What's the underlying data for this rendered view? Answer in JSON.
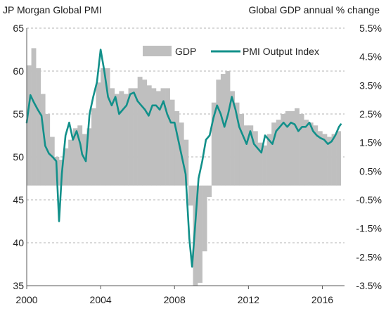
{
  "chart_data": {
    "type": "bar+line",
    "titles": {
      "left": "JP Morgan Global  PMI",
      "right": "Global  GDP annual % change"
    },
    "y_left": {
      "range": [
        35,
        65
      ],
      "ticks": [
        "35",
        "40",
        "45",
        "50",
        "55",
        "60",
        "65"
      ],
      "tick_values": [
        35,
        40,
        45,
        50,
        55,
        60,
        65
      ]
    },
    "y_right": {
      "range": [
        -3.5,
        5.5
      ],
      "ticks": [
        "-3.5%",
        "-2.5%",
        "-1.5%",
        "-0.5%",
        "0.5%",
        "1.5%",
        "2.5%",
        "3.5%",
        "4.5%",
        "5.5%"
      ],
      "tick_values": [
        -3.5,
        -2.5,
        -1.5,
        -0.5,
        0.5,
        1.5,
        2.5,
        3.5,
        4.5,
        5.5
      ]
    },
    "x_axis": {
      "range": [
        2000.0,
        2017.2
      ],
      "ticks": [
        "2000",
        "2004",
        "2008",
        "2012",
        "2016"
      ],
      "tick_values": [
        2000,
        2004,
        2008,
        2012,
        2016
      ]
    },
    "grid": true,
    "legend": {
      "position": "top-right",
      "items": [
        "GDP",
        "PMI Output Index"
      ]
    },
    "series": [
      {
        "name": "GDP",
        "kind": "bar",
        "axis": "right",
        "color": "#bfbfbf",
        "x": [
          2000.0,
          2000.25,
          2000.5,
          2000.75,
          2001.0,
          2001.25,
          2001.5,
          2001.75,
          2002.0,
          2002.25,
          2002.5,
          2002.75,
          2003.0,
          2003.25,
          2003.5,
          2003.75,
          2004.0,
          2004.25,
          2004.5,
          2004.75,
          2005.0,
          2005.25,
          2005.5,
          2005.75,
          2006.0,
          2006.25,
          2006.5,
          2006.75,
          2007.0,
          2007.25,
          2007.5,
          2007.75,
          2008.0,
          2008.25,
          2008.5,
          2008.75,
          2009.0,
          2009.25,
          2009.5,
          2009.75,
          2010.0,
          2010.25,
          2010.5,
          2010.75,
          2011.0,
          2011.25,
          2011.5,
          2011.75,
          2012.0,
          2012.25,
          2012.5,
          2012.75,
          2013.0,
          2013.25,
          2013.5,
          2013.75,
          2014.0,
          2014.25,
          2014.5,
          2014.75,
          2015.0,
          2015.25,
          2015.5,
          2015.75,
          2016.0,
          2016.25,
          2016.5,
          2016.75
        ],
        "values": [
          4.2,
          4.8,
          4.1,
          3.2,
          2.5,
          1.7,
          1.0,
          0.9,
          1.3,
          1.6,
          2.0,
          2.1,
          1.8,
          2.0,
          2.7,
          3.6,
          4.1,
          4.1,
          3.4,
          3.2,
          3.3,
          3.2,
          3.4,
          3.4,
          3.8,
          3.7,
          3.5,
          3.4,
          3.3,
          3.4,
          3.4,
          3.0,
          2.6,
          2.2,
          1.6,
          -0.7,
          -3.5,
          -3.4,
          -2.3,
          -0.4,
          2.9,
          3.7,
          3.9,
          4.0,
          3.3,
          2.9,
          2.5,
          2.1,
          2.1,
          1.9,
          1.5,
          1.4,
          1.8,
          2.2,
          2.3,
          2.5,
          2.6,
          2.6,
          2.7,
          2.5,
          2.3,
          2.2,
          2.1,
          1.9,
          1.8,
          1.7,
          1.8,
          1.9
        ]
      },
      {
        "name": "PMI Output Index",
        "kind": "line",
        "axis": "left",
        "color": "#12908a",
        "x": [
          2000.0,
          2000.2,
          2000.4,
          2000.6,
          2000.8,
          2001.0,
          2001.2,
          2001.4,
          2001.6,
          2001.75,
          2001.9,
          2002.1,
          2002.3,
          2002.5,
          2002.7,
          2002.9,
          2003.0,
          2003.2,
          2003.4,
          2003.6,
          2003.8,
          2004.0,
          2004.2,
          2004.4,
          2004.6,
          2004.8,
          2005.0,
          2005.2,
          2005.4,
          2005.6,
          2005.8,
          2006.0,
          2006.2,
          2006.4,
          2006.6,
          2006.8,
          2007.0,
          2007.2,
          2007.4,
          2007.6,
          2007.8,
          2008.0,
          2008.2,
          2008.4,
          2008.6,
          2008.8,
          2008.95,
          2009.1,
          2009.3,
          2009.5,
          2009.7,
          2009.9,
          2010.1,
          2010.3,
          2010.5,
          2010.7,
          2010.9,
          2011.1,
          2011.3,
          2011.5,
          2011.7,
          2011.9,
          2012.1,
          2012.3,
          2012.5,
          2012.7,
          2012.9,
          2013.1,
          2013.3,
          2013.5,
          2013.7,
          2013.9,
          2014.1,
          2014.3,
          2014.5,
          2014.7,
          2014.9,
          2015.1,
          2015.3,
          2015.5,
          2015.7,
          2015.9,
          2016.1,
          2016.3,
          2016.5,
          2016.7,
          2016.9,
          2017.0
        ],
        "values": [
          54.0,
          57.2,
          56.3,
          55.5,
          54.8,
          51.3,
          50.4,
          50.0,
          49.5,
          42.5,
          48.0,
          52.5,
          54.0,
          52.0,
          53.0,
          51.5,
          50.3,
          49.5,
          55.0,
          57.0,
          58.7,
          62.5,
          60.0,
          57.0,
          56.0,
          57.0,
          55.0,
          55.5,
          56.0,
          57.3,
          57.5,
          56.5,
          56.0,
          55.5,
          54.8,
          56.0,
          56.0,
          55.5,
          56.5,
          55.0,
          54.0,
          54.0,
          52.0,
          50.0,
          48.0,
          40.5,
          37.2,
          41.5,
          47.5,
          49.5,
          52.0,
          52.5,
          54.5,
          56.0,
          55.0,
          53.5,
          55.0,
          57.0,
          55.5,
          53.5,
          52.5,
          51.5,
          53.0,
          51.5,
          51.0,
          50.5,
          52.5,
          52.0,
          51.5,
          53.0,
          53.5,
          54.0,
          53.5,
          54.0,
          53.8,
          53.0,
          53.5,
          53.5,
          54.0,
          53.0,
          52.5,
          52.2,
          52.0,
          51.5,
          51.8,
          52.5,
          53.5,
          53.8
        ]
      }
    ]
  }
}
